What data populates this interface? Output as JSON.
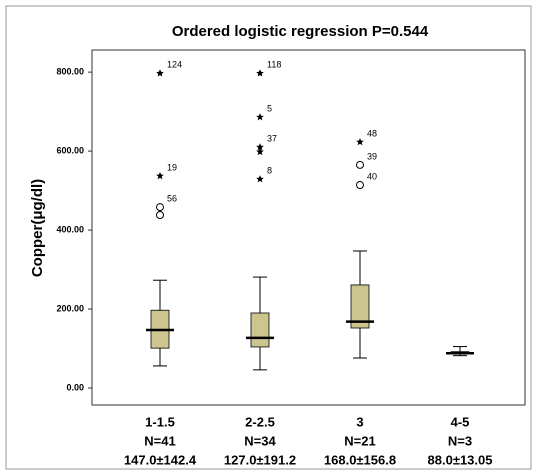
{
  "chart_data": {
    "type": "box",
    "title": "Ordered logistic regression P=0.544",
    "ylabel": "Copper(μg/dl)",
    "categories": [
      "1-1.5",
      "2-2.5",
      "3",
      "4-5"
    ],
    "counts": [
      "N=41",
      "N=34",
      "N=21",
      "N=3"
    ],
    "summaries": [
      "147.0±142.4",
      "127.0±191.2",
      "168.0±156.8",
      "88.0±13.05"
    ],
    "ylim": [
      -43,
      856
    ],
    "yticks": [
      {
        "value": 0,
        "label": "0.00"
      },
      {
        "value": 200,
        "label": "200.00"
      },
      {
        "value": 400,
        "label": "400.00"
      },
      {
        "value": 600,
        "label": "600.00"
      },
      {
        "value": 800,
        "label": "800.00"
      }
    ],
    "color": "#cdc58f",
    "boxes": [
      {
        "low": 56,
        "q1": 101,
        "median": 147,
        "q3": 197,
        "high": 273,
        "outliers": [
          {
            "value": 438,
            "marker": "circle"
          },
          {
            "value": 458,
            "marker": "circle",
            "label": "56"
          },
          {
            "value": 537,
            "marker": "star",
            "label": "19"
          },
          {
            "value": 797,
            "marker": "star",
            "label": "124"
          }
        ]
      },
      {
        "low": 46,
        "q1": 104,
        "median": 127,
        "q3": 190,
        "high": 281,
        "outliers": [
          {
            "value": 529,
            "marker": "star",
            "label": "8"
          },
          {
            "value": 598,
            "marker": "star"
          },
          {
            "value": 610,
            "marker": "star",
            "label": "37"
          },
          {
            "value": 686,
            "marker": "star",
            "label": "5"
          },
          {
            "value": 797,
            "marker": "star",
            "label": "118"
          }
        ]
      },
      {
        "low": 76,
        "q1": 152,
        "median": 168,
        "q3": 261,
        "high": 347,
        "outliers": [
          {
            "value": 514,
            "marker": "circle",
            "label": "40"
          },
          {
            "value": 565,
            "marker": "circle",
            "label": "39"
          },
          {
            "value": 623,
            "marker": "star",
            "label": "48"
          }
        ]
      },
      {
        "low": 82,
        "q1": 86,
        "median": 88,
        "q3": 92,
        "high": 105,
        "outliers": []
      }
    ]
  }
}
